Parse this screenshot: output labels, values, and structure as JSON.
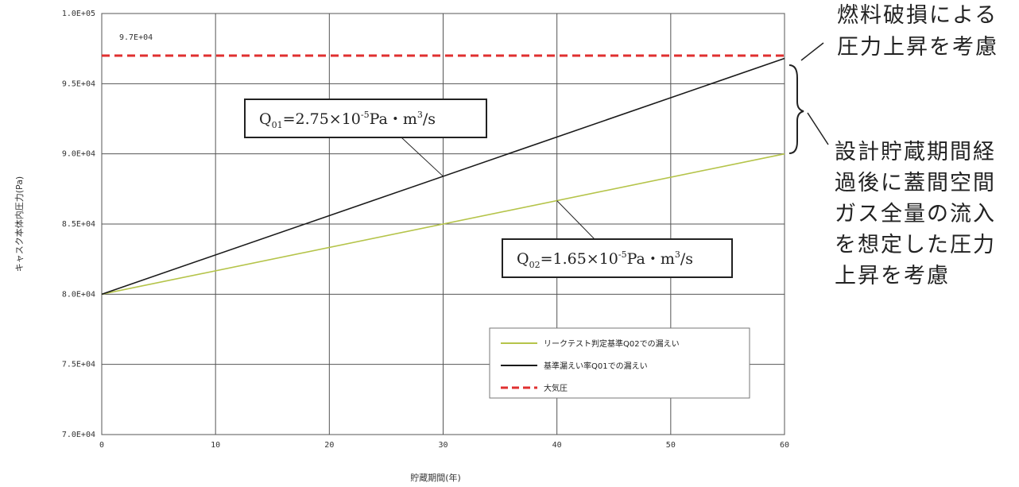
{
  "chart_data": {
    "type": "line",
    "xlabel": "貯蔵期間(年)",
    "ylabel": "キャスク本体内圧力(Pa)",
    "xlim": [
      0,
      60
    ],
    "ylim": [
      70000,
      100000
    ],
    "x_ticks": [
      "0",
      "10",
      "20",
      "30",
      "40",
      "50",
      "60"
    ],
    "y_ticks": [
      "7.0E+04",
      "7.5E+04",
      "8.0E+04",
      "8.5E+04",
      "9.0E+04",
      "9.5E+04",
      "1.0E+05"
    ],
    "grid": true,
    "legend_position": "bottom-right",
    "series": [
      {
        "name": "リークテスト判定基準Q02での漏えい",
        "color": "#b5c44a",
        "style": "solid",
        "x": [
          0,
          60
        ],
        "y": [
          80000,
          90000
        ]
      },
      {
        "name": "基準漏えい率Q01での漏えい",
        "color": "#1a1a1a",
        "style": "solid",
        "x": [
          0,
          60
        ],
        "y": [
          80000,
          96800
        ]
      },
      {
        "name": "大気圧",
        "color": "#e03030",
        "style": "dashed",
        "x": [
          0,
          60
        ],
        "y": [
          97000,
          97000
        ]
      }
    ],
    "annotations": {
      "refline_label": "9.7E+04",
      "q01": {
        "main": "Q",
        "sub": "01",
        "rest_a": "=2.75×10",
        "sup_a": "-5",
        "rest_b": "Pa・m",
        "sup_b": "3",
        "rest_c": "/s",
        "target_x": 30,
        "target_series": 1
      },
      "q02": {
        "main": "Q",
        "sub": "02",
        "rest_a": "=1.65×10",
        "sup_a": "-5",
        "rest_b": "Pa・m",
        "sup_b": "3",
        "rest_c": "/s",
        "target_x": 40,
        "target_series": 0
      }
    }
  },
  "side_notes": {
    "top": [
      "燃料破損による",
      "圧力上昇を考慮"
    ],
    "bottom": [
      "設計貯蔵期間経",
      "過後に蓋間空間",
      "ガス全量の流入",
      "を想定した圧力",
      "上昇を考慮"
    ]
  },
  "colors": {
    "grid": "#555555",
    "frame": "#444444",
    "box": "#222222"
  }
}
